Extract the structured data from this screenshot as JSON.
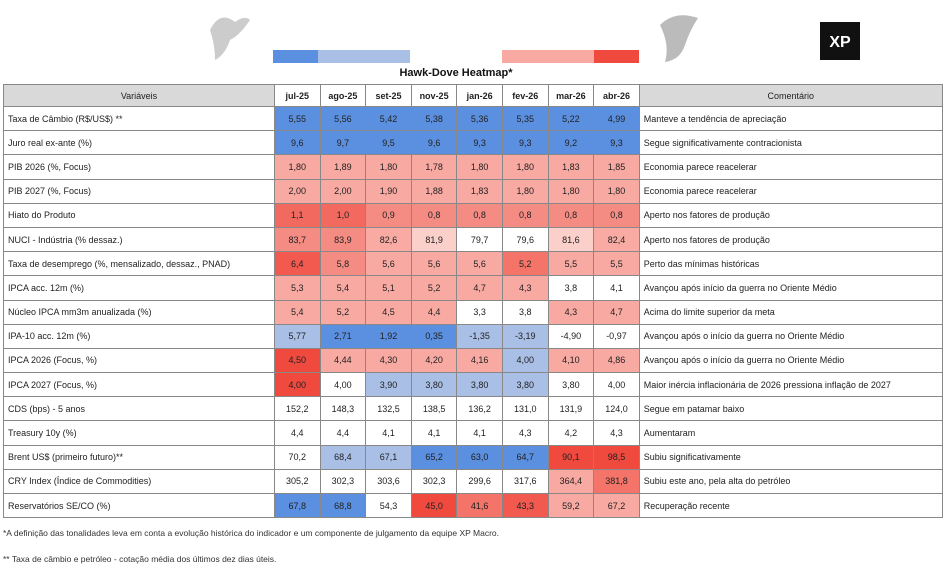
{
  "title": "Hawk-Dove Heatmap*",
  "logo": "XP",
  "header": {
    "variable": "Variáveis",
    "months": [
      "jul-25",
      "ago-25",
      "set-25",
      "nov-25",
      "jan-26",
      "fev-26",
      "mar-26",
      "abr-26"
    ],
    "comment": "Comentário"
  },
  "rows": [
    {
      "label": "Taxa de Câmbio (R$/US$) **",
      "values": [
        "5,55",
        "5,56",
        "5,42",
        "5,38",
        "5,36",
        "5,35",
        "5,22",
        "4,99"
      ],
      "colors": [
        "#5b8fdf",
        "#5b8fdf",
        "#5b8fdf",
        "#5b8fdf",
        "#5b8fdf",
        "#5b8fdf",
        "#5b8fdf",
        "#5b8fdf"
      ],
      "comment": "Manteve a tendência de apreciação"
    },
    {
      "label": "Juro real ex-ante (%)",
      "values": [
        "9,6",
        "9,7",
        "9,5",
        "9,6",
        "9,3",
        "9,3",
        "9,2",
        "9,3"
      ],
      "colors": [
        "#5b8fdf",
        "#5b8fdf",
        "#5b8fdf",
        "#5b8fdf",
        "#5b8fdf",
        "#5b8fdf",
        "#5b8fdf",
        "#5b8fdf"
      ],
      "comment": "Segue significativamente contracionista"
    },
    {
      "label": "PIB 2026 (%, Focus)",
      "values": [
        "1,80",
        "1,89",
        "1,80",
        "1,78",
        "1,80",
        "1,80",
        "1,83",
        "1,85"
      ],
      "colors": [
        "#f8a9a2",
        "#f8a9a2",
        "#f8a9a2",
        "#f8a9a2",
        "#f8a9a2",
        "#f8a9a2",
        "#f8a9a2",
        "#f8a9a2"
      ],
      "comment": "Economia parece reacelerar"
    },
    {
      "label": "PIB 2027 (%, Focus)",
      "values": [
        "2,00",
        "2,00",
        "1,90",
        "1,88",
        "1,83",
        "1,80",
        "1,80",
        "1,80"
      ],
      "colors": [
        "#f8a9a2",
        "#f8a9a2",
        "#f8a9a2",
        "#f8a9a2",
        "#f8a9a2",
        "#f8a9a2",
        "#f8a9a2",
        "#f8a9a2"
      ],
      "comment": "Economia parece reacelerar"
    },
    {
      "label": "Hiato do Produto",
      "values": [
        "1,1",
        "1,0",
        "0,9",
        "0,8",
        "0,8",
        "0,8",
        "0,8",
        "0,8"
      ],
      "colors": [
        "#f26a5f",
        "#f26a5f",
        "#f58c84",
        "#f58c84",
        "#f58c84",
        "#f58c84",
        "#f58c84",
        "#f58c84"
      ],
      "comment": "Aperto nos fatores de produção"
    },
    {
      "label": "NUCI - Indústria (% dessaz.)",
      "values": [
        "83,7",
        "83,9",
        "82,6",
        "81,9",
        "79,7",
        "79,6",
        "81,6",
        "82,4"
      ],
      "colors": [
        "#f58c84",
        "#f58c84",
        "#f8aaa3",
        "#fbcfca",
        "#ffffff",
        "#ffffff",
        "#fbcfca",
        "#f8aaa3"
      ],
      "comment": "Aperto nos fatores de produção"
    },
    {
      "label": "Taxa de desemprego (%, mensalizado, dessaz., PNAD)",
      "values": [
        "6,4",
        "5,8",
        "5,6",
        "5,6",
        "5,6",
        "5,2",
        "5,5",
        "5,5"
      ],
      "colors": [
        "#f25a4f",
        "#f58c84",
        "#f8a9a2",
        "#f8a9a2",
        "#f8a9a2",
        "#f47469",
        "#f8a9a2",
        "#f8a9a2"
      ],
      "comment": "Perto das mínimas históricas"
    },
    {
      "label": "IPCA acc. 12m (%)",
      "values": [
        "5,3",
        "5,4",
        "5,1",
        "5,2",
        "4,7",
        "4,3",
        "3,8",
        "4,1"
      ],
      "colors": [
        "#f8a9a2",
        "#f8a9a2",
        "#f8a9a2",
        "#f8a9a2",
        "#f8a9a2",
        "#f8a9a2",
        "#ffffff",
        "#ffffff"
      ],
      "comment": "Avançou após início da guerra no Oriente Médio"
    },
    {
      "label": "Núcleo IPCA mm3m anualizada (%)",
      "values": [
        "5,4",
        "5,2",
        "4,5",
        "4,4",
        "3,3",
        "3,8",
        "4,3",
        "4,7"
      ],
      "colors": [
        "#f8a9a2",
        "#f8a9a2",
        "#f8a9a2",
        "#f8a9a2",
        "#ffffff",
        "#ffffff",
        "#f8a9a2",
        "#f8a9a2"
      ],
      "comment": "Acima do limite superior da meta"
    },
    {
      "label": "IPA-10 acc. 12m (%)",
      "values": [
        "5,77",
        "2,71",
        "1,92",
        "0,35",
        "-1,35",
        "-3,19",
        "-4,90",
        "-0,97"
      ],
      "colors": [
        "#aabfe6",
        "#5b8fdf",
        "#5b8fdf",
        "#5b8fdf",
        "#aabfe6",
        "#aabfe6",
        "#ffffff",
        "#ffffff"
      ],
      "comment": "Avançou após o início da guerra no Oriente Médio"
    },
    {
      "label": "IPCA 2026 (Focus, %)",
      "values": [
        "4,50",
        "4,44",
        "4,30",
        "4,20",
        "4,16",
        "4,00",
        "4,10",
        "4,86"
      ],
      "colors": [
        "#f04a3f",
        "#f8a9a2",
        "#f8a9a2",
        "#f8a9a2",
        "#f8a9a2",
        "#aabfe6",
        "#f8a9a2",
        "#f8a9a2"
      ],
      "comment": "Avançou após o início da guerra no Oriente Médio"
    },
    {
      "label": "IPCA 2027 (Focus, %)",
      "values": [
        "4,00",
        "4,00",
        "3,90",
        "3,80",
        "3,80",
        "3,80",
        "3,80",
        "4,00"
      ],
      "colors": [
        "#f04a3f",
        "#ffffff",
        "#aabfe6",
        "#aabfe6",
        "#aabfe6",
        "#aabfe6",
        "#ffffff",
        "#ffffff"
      ],
      "comment": "Maior inércia inflacionária de 2026 pressiona inflação de 2027"
    },
    {
      "label": "CDS (bps) - 5 anos",
      "values": [
        "152,2",
        "148,3",
        "132,5",
        "138,5",
        "136,2",
        "131,0",
        "131,9",
        "124,0"
      ],
      "colors": [
        "#ffffff",
        "#ffffff",
        "#ffffff",
        "#ffffff",
        "#ffffff",
        "#ffffff",
        "#ffffff",
        "#ffffff"
      ],
      "comment": "Segue em patamar baixo"
    },
    {
      "label": "Treasury 10y (%)",
      "values": [
        "4,4",
        "4,4",
        "4,1",
        "4,1",
        "4,1",
        "4,3",
        "4,2",
        "4,3"
      ],
      "colors": [
        "#ffffff",
        "#ffffff",
        "#ffffff",
        "#ffffff",
        "#ffffff",
        "#ffffff",
        "#ffffff",
        "#ffffff"
      ],
      "comment": "Aumentaram"
    },
    {
      "label": "Brent US$ (primeiro futuro)**",
      "values": [
        "70,2",
        "68,4",
        "67,1",
        "65,2",
        "63,0",
        "64,7",
        "90,1",
        "98,5"
      ],
      "colors": [
        "#ffffff",
        "#aabfe6",
        "#aabfe6",
        "#5b8fdf",
        "#5b8fdf",
        "#5b8fdf",
        "#f04a3f",
        "#f04a3f"
      ],
      "comment": "Subiu significativamente"
    },
    {
      "label": "CRY Index (Índice de Commodities)",
      "values": [
        "305,2",
        "302,3",
        "303,6",
        "302,3",
        "299,6",
        "317,6",
        "364,4",
        "381,8"
      ],
      "colors": [
        "#ffffff",
        "#ffffff",
        "#ffffff",
        "#ffffff",
        "#ffffff",
        "#ffffff",
        "#f8a9a2",
        "#f47469"
      ],
      "comment": "Subiu este ano, pela alta do petróleo"
    },
    {
      "label": "Reservatórios SE/CO (%)",
      "values": [
        "67,8",
        "68,8",
        "54,3",
        "45,0",
        "41,6",
        "43,3",
        "59,2",
        "67,2"
      ],
      "colors": [
        "#5b8fdf",
        "#5b8fdf",
        "#ffffff",
        "#f04a3f",
        "#f47469",
        "#f25a4f",
        "#f8a9a2",
        "#f8a9a2"
      ],
      "comment": "Recuperação recente"
    }
  ],
  "footnotes": [
    "*A definição das tonalidades leva em conta a evolução histórica do indicador e um componente de julgamento da equipe XP Macro.",
    "** Taxa de câmbio e petróleo - cotação média dos últimos dez dias úteis."
  ]
}
